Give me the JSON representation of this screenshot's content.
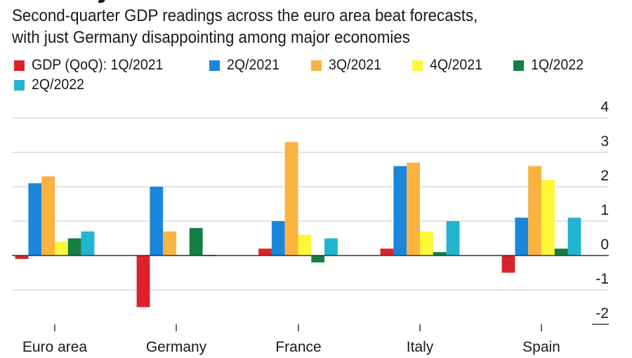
{
  "subtitle": [
    "Second-quarter GDP readings across the euro area beat forecasts,",
    "with just Germany disappointing among major economies"
  ],
  "legend": [
    {
      "label": "GDP (QoQ): 1Q/2021",
      "color": "#dc2229"
    },
    {
      "label": "2Q/2021",
      "color": "#1a86db"
    },
    {
      "label": "3Q/2021",
      "color": "#fbb33f"
    },
    {
      "label": "4Q/2021",
      "color": "#fdf735"
    },
    {
      "label": "1Q/2022",
      "color": "#147d45"
    },
    {
      "label": "2Q/2022",
      "color": "#22b5d0"
    }
  ],
  "chart_data": {
    "type": "bar",
    "title": "Second-quarter GDP readings across the euro area beat forecasts, with just Germany disappointing among major economies",
    "xlabel": "",
    "ylabel": "",
    "ylim": [
      -2,
      4
    ],
    "yticks": [
      "4",
      "3",
      "2",
      "1",
      "0",
      "-1",
      "-2"
    ],
    "ytick_values": [
      4,
      3,
      2,
      1,
      0,
      -1,
      -2
    ],
    "grid": true,
    "legend_position": "top-left",
    "categories": [
      "Euro area",
      "Germany",
      "France",
      "Italy",
      "Spain"
    ],
    "series": [
      {
        "name": "GDP (QoQ): 1Q/2021",
        "color": "#dc2229",
        "values": [
          -0.1,
          -1.5,
          0.2,
          0.2,
          -0.5
        ]
      },
      {
        "name": "2Q/2021",
        "color": "#1a86db",
        "values": [
          2.1,
          2.0,
          1.0,
          2.6,
          1.1
        ]
      },
      {
        "name": "3Q/2021",
        "color": "#fbb33f",
        "values": [
          2.3,
          0.7,
          3.3,
          2.7,
          2.6
        ]
      },
      {
        "name": "4Q/2021",
        "color": "#fdf735",
        "values": [
          0.4,
          0.0,
          0.6,
          0.7,
          2.2
        ]
      },
      {
        "name": "1Q/2022",
        "color": "#147d45",
        "values": [
          0.5,
          0.8,
          -0.2,
          0.1,
          0.2
        ]
      },
      {
        "name": "2Q/2022",
        "color": "#22b5d0",
        "values": [
          0.7,
          0.0,
          0.5,
          1.0,
          1.1
        ]
      }
    ]
  }
}
